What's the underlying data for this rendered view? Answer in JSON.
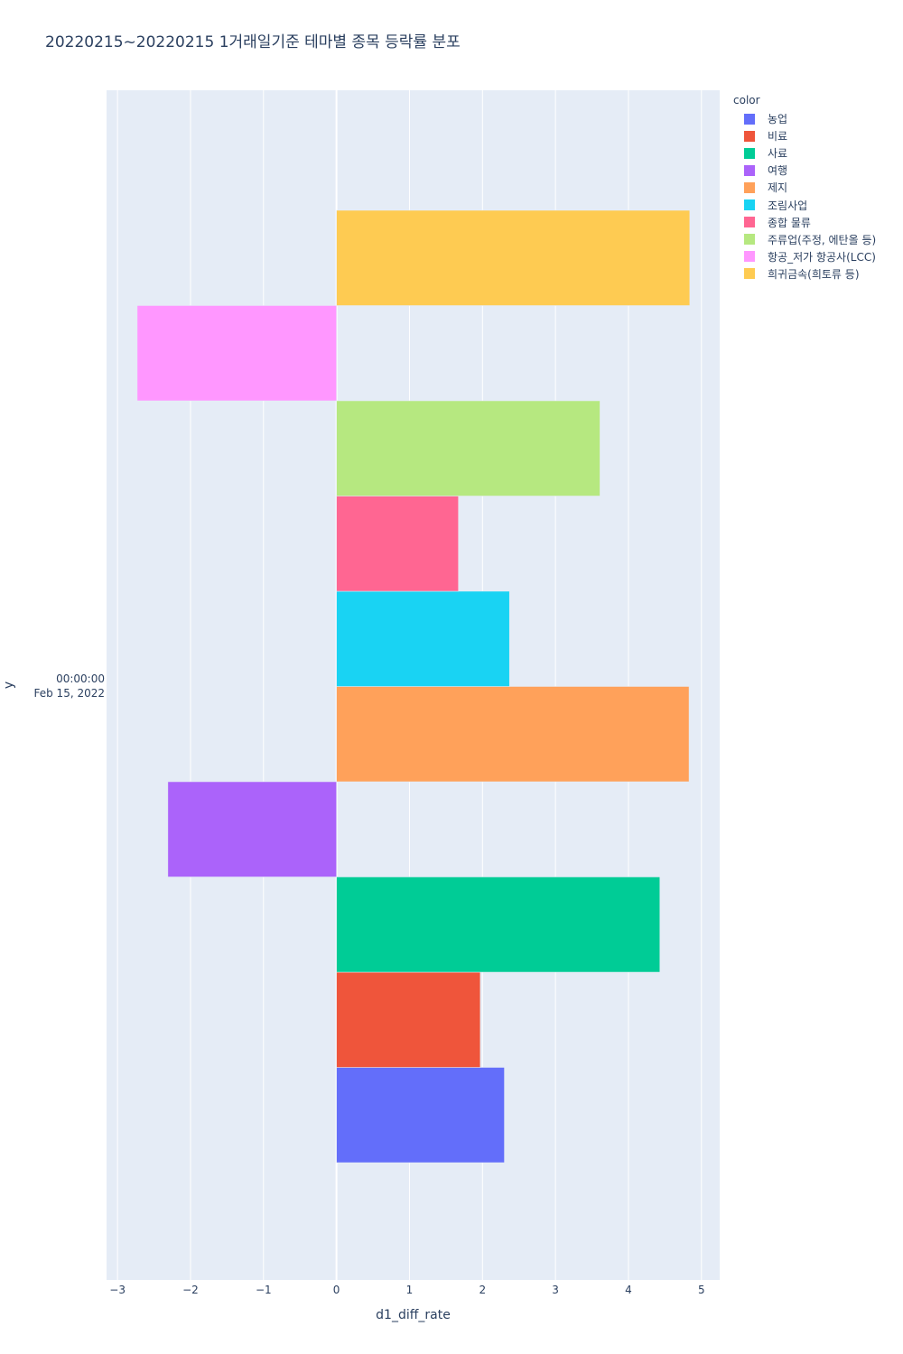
{
  "chart_data": {
    "type": "bar",
    "orientation": "horizontal",
    "title": "20220215~20220215 1거래일기준 테마별 종목 등락률 분포",
    "xlabel": "d1_diff_rate",
    "ylabel": "y",
    "y_category_line1": "00:00:00",
    "y_category_line2": "Feb 15, 2022",
    "xlim": [
      -3.15,
      5.25
    ],
    "xticks": [
      -3,
      -2,
      -1,
      0,
      1,
      2,
      3,
      4,
      5
    ],
    "xtick_labels": [
      "−3",
      "−2",
      "−1",
      "0",
      "1",
      "2",
      "3",
      "4",
      "5"
    ],
    "legend_title": "color",
    "grid": true,
    "series": [
      {
        "name": "농업",
        "value": 2.3,
        "color": "#636efa"
      },
      {
        "name": "비료",
        "value": 1.97,
        "color": "#EF553B"
      },
      {
        "name": "사료",
        "value": 4.43,
        "color": "#00cc96"
      },
      {
        "name": "여행",
        "value": -2.31,
        "color": "#ab63fa"
      },
      {
        "name": "제지",
        "value": 4.83,
        "color": "#FFA15A"
      },
      {
        "name": "조림사업",
        "value": 2.37,
        "color": "#19d3f3"
      },
      {
        "name": "종합 물류",
        "value": 1.67,
        "color": "#FF6692"
      },
      {
        "name": "주류업(주정, 에탄올 등)",
        "value": 3.61,
        "color": "#B6E880"
      },
      {
        "name": "항공_저가 항공사(LCC)",
        "value": -2.73,
        "color": "#FF97FF"
      },
      {
        "name": "희귀금속(희토류 등)",
        "value": 4.84,
        "color": "#FECB52"
      }
    ]
  }
}
